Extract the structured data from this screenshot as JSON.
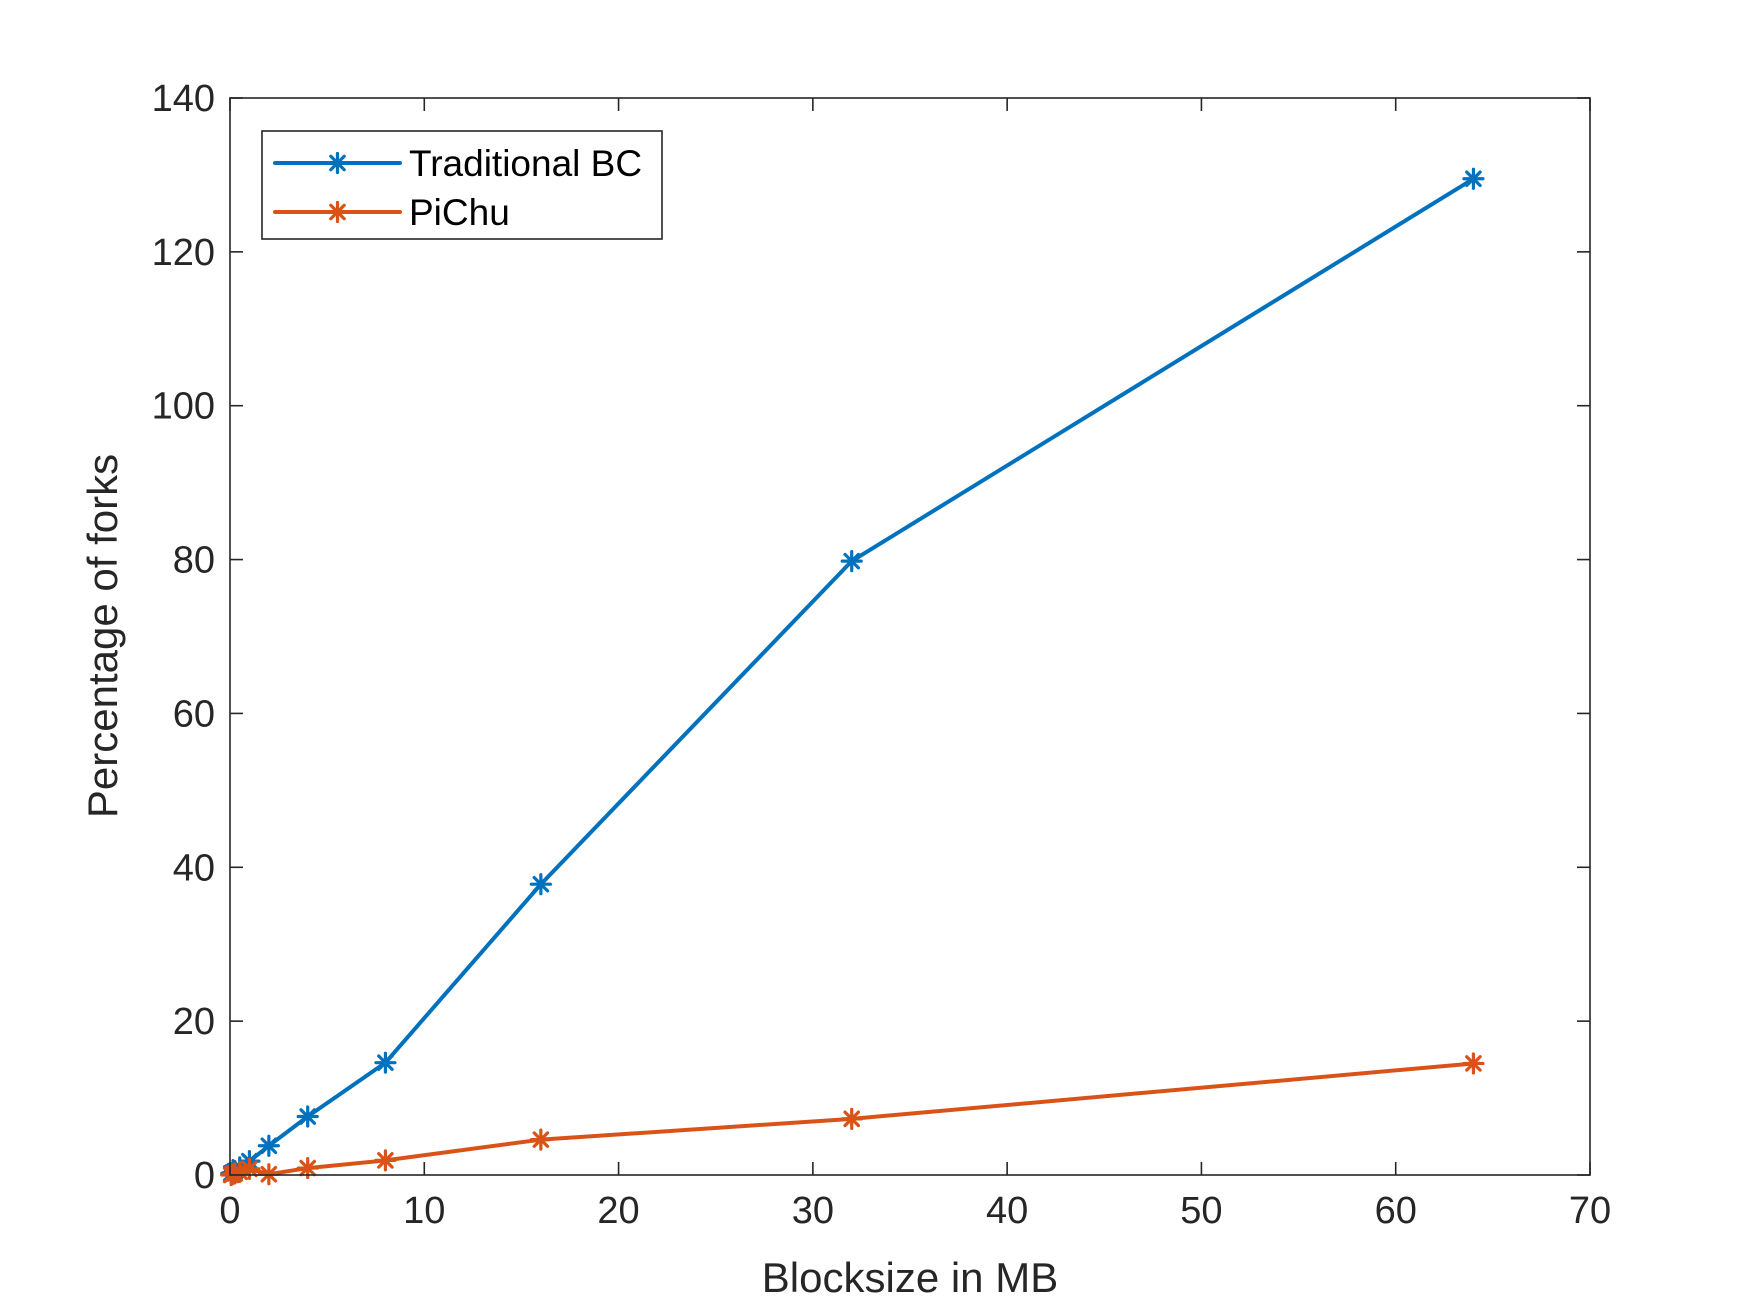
{
  "chart_data": {
    "type": "line",
    "title": "",
    "xlabel": "Blocksize in MB",
    "ylabel": "Percentage of forks",
    "xlim": [
      0,
      70
    ],
    "ylim": [
      0,
      140
    ],
    "xticks": [
      0,
      10,
      20,
      30,
      40,
      50,
      60,
      70
    ],
    "yticks": [
      0,
      20,
      40,
      60,
      80,
      100,
      120,
      140
    ],
    "xtick_labels": [
      "0",
      "10",
      "20",
      "30",
      "40",
      "50",
      "60",
      "70"
    ],
    "ytick_labels": [
      "0",
      "20",
      "40",
      "60",
      "80",
      "100",
      "120",
      "140"
    ],
    "grid": false,
    "legend_position": "top-left",
    "x": [
      0.0625,
      0.125,
      0.25,
      0.5,
      1,
      2,
      4,
      8,
      16,
      32,
      64
    ],
    "series": [
      {
        "name": "Traditional BC",
        "color": "#0072BD",
        "marker": "asterisk",
        "values": [
          0.2,
          0.3,
          0.5,
          1.0,
          1.8,
          3.8,
          7.6,
          14.6,
          37.8,
          79.8,
          129.5
        ]
      },
      {
        "name": "PiChu",
        "color": "#D95319",
        "marker": "asterisk",
        "values": [
          0.0,
          0.1,
          0.2,
          0.4,
          0.8,
          0.1,
          0.9,
          1.9,
          4.6,
          7.3,
          14.5
        ]
      }
    ]
  }
}
